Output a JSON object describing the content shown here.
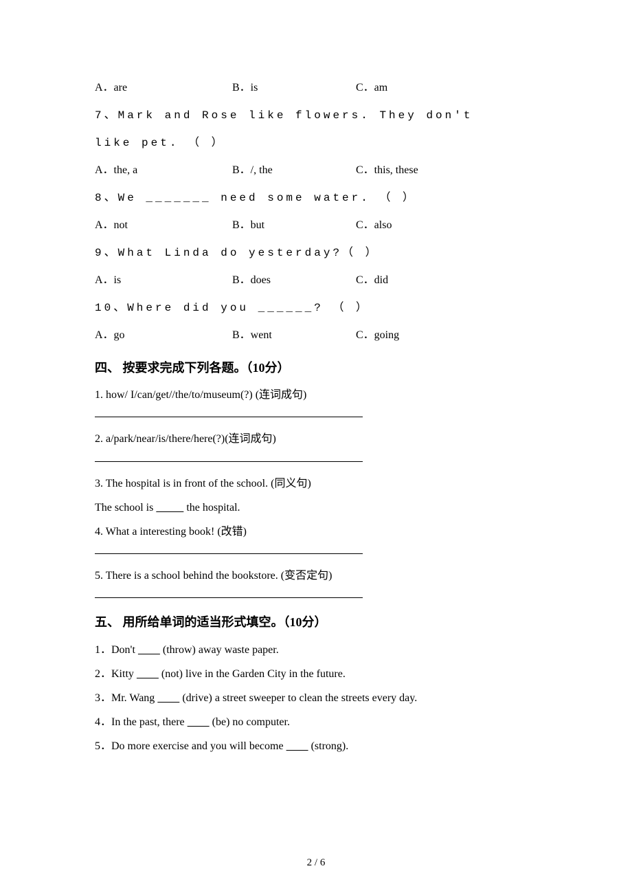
{
  "q6": {
    "a": "A．are",
    "b": "B．is",
    "c": "C．am"
  },
  "q7": {
    "stem1": "7、Mark and Rose like    flowers. They don't",
    "stem2": "like     pet. （    ）",
    "a": "A．the, a",
    "b": "B．/, the",
    "c": "C．this, these"
  },
  "q8": {
    "stem": "8、We _______ need some water. （    ）",
    "a": "A．not",
    "b": "B．but",
    "c": "C．also"
  },
  "q9": {
    "stem": "9、What     Linda do yesterday?（    ）",
    "a": "A．is",
    "b": "B．does",
    "c": "C．did"
  },
  "q10": {
    "stem": "10、Where did you ______? （    ）",
    "a": "A．go",
    "b": "B．went",
    "c": "C．going"
  },
  "sec4": {
    "heading": "四、 按要求完成下列各题。（10分）",
    "q1": "1. how/ I/can/get//the/to/museum(?) (连词成句)",
    "q2": "2. a/park/near/is/there/here(?)(连词成句)",
    "q3": "3. The hospital is in front of the school. (同义句)",
    "q3b_pre": "The school is ",
    "q3b_post": " the hospital.",
    "q4": "4. What a interesting book! (改错)",
    "q5": "5. There is a school behind the bookstore. (变否定句)"
  },
  "sec5": {
    "heading": "五、 用所给单词的适当形式填空。（10分）",
    "q1_pre": "1．Don't ",
    "q1_post": " (throw) away waste paper.",
    "q2_pre": "2．Kitty ",
    "q2_post": " (not) live in the Garden City in the future.",
    "q3_pre": "3．Mr. Wang ",
    "q3_post": " (drive) a street sweeper to clean the streets every day.",
    "q4_pre": "4．In the past, there ",
    "q4_post": " (be) no computer.",
    "q5_pre": "5．Do more exercise and you will become ",
    "q5_post": " (strong)."
  },
  "blank8": "        ",
  "blank10": "          ",
  "pagenum": "2 / 6"
}
